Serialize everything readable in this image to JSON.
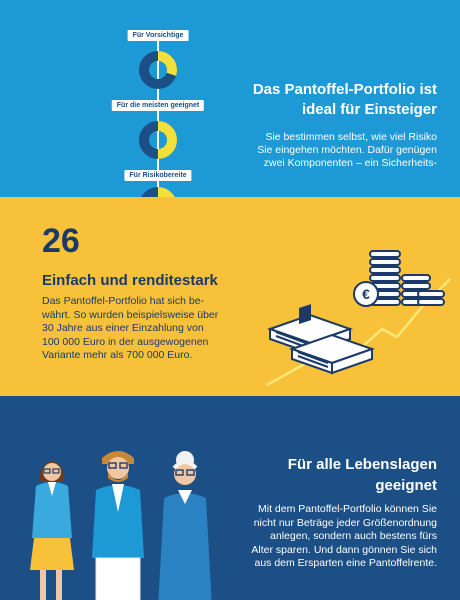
{
  "portfolio": {
    "donuts": [
      {
        "label": "Für Vorsichtige",
        "share": 0.3
      },
      {
        "label": "Für die meisten geeignet",
        "share": 0.5
      },
      {
        "label": "Für Risikobereite",
        "share": 0.7
      }
    ],
    "title_line1": "Das Pantoffel-Portfolio ist",
    "title_line2": "ideal für Einsteiger",
    "text_line1": "Sie bestimmen selbst, wie viel Risiko",
    "text_line2": "Sie eingehen möchten. Dafür genügen",
    "text_line3": "zwei Komponenten – ein Sicherheits-"
  },
  "rendite": {
    "number": "26",
    "title": "Einfach und renditestark",
    "text_line1": "Das Pantoffel-Portfolio hat sich be-",
    "text_line2": "währt. So wurden beispielsweise über",
    "text_line3": "30 Jahre aus einer Einzahlung von",
    "text_line4": "100 000 Euro in der ausgewogenen",
    "text_line5": "Variante mehr als 700 000 Euro."
  },
  "lebenslagen": {
    "title_line1": "Für alle Lebenslagen",
    "title_line2": "geeignet",
    "text_line1": "Mit dem Pantoffel-Portfolio können Sie",
    "text_line2": "nicht nur Beträge jeder Größenordnung",
    "text_line3": "anlegen, sondern auch bestens fürs",
    "text_line4": "Alter sparen. Und dann gönnen Sie sich",
    "text_line5": "aus dem Ersparten eine Pantoffelrente."
  },
  "colors": {
    "blue": "#1d9ad6",
    "yellow": "#f8c13a",
    "navy": "#1b4f85",
    "dark_navy": "#1b3a68",
    "donut_yellow": "#f3e03b",
    "donut_navy": "#1b4f85"
  },
  "icons": [
    "coin-stack-icon",
    "euro-coin-icon",
    "banknote-bundle-icon",
    "growth-line-icon",
    "people-illustration"
  ]
}
